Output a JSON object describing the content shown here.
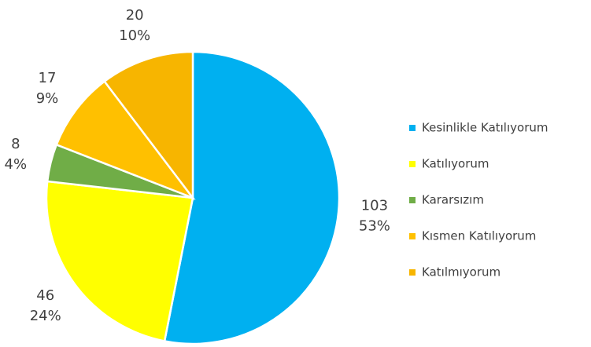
{
  "chart_data": {
    "type": "pie",
    "categories": [
      "Kesinlikle Katılıyorum",
      "Katılıyorum",
      "Kararsızım",
      "Kısmen Katılıyorum",
      "Katılmıyorum"
    ],
    "values": [
      103,
      46,
      8,
      17,
      20
    ],
    "percent_labels": [
      "53%",
      "24%",
      "4%",
      "9%",
      "10%"
    ],
    "colors": [
      "#00b0f0",
      "#ffff00",
      "#70ad47",
      "#ffc000",
      "#f7b500"
    ],
    "legend": "right"
  }
}
